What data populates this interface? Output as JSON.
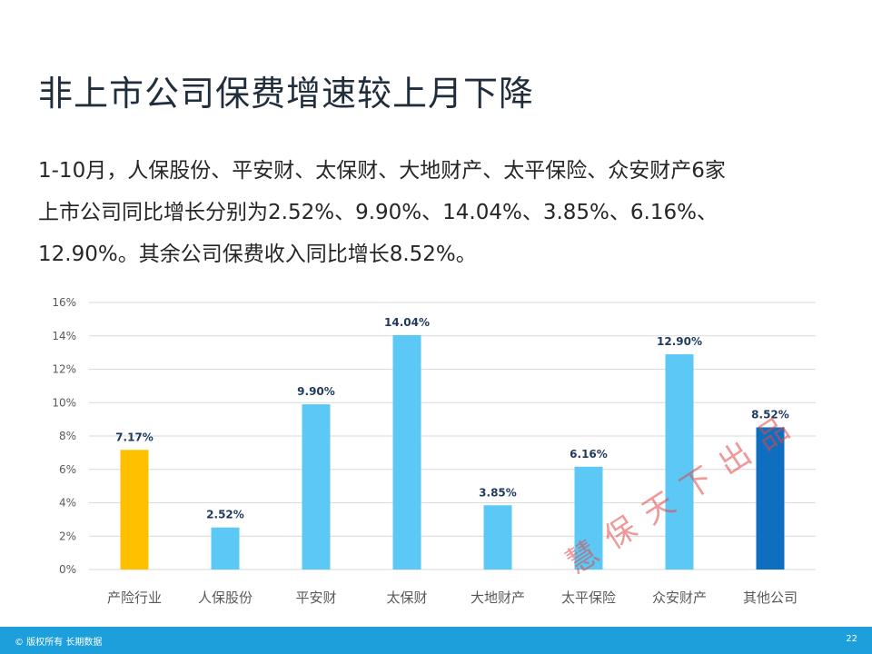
{
  "slide": {
    "title": "非上市公司保费增速较上月下降",
    "paragraph_lines": [
      "1-10月，人保股份、平安财、太保财、大地财产、太平保险、众安财产6家",
      "上市公司同比增长分别为2.52%、9.90%、14.04%、3.85%、6.16%、",
      "12.90%。其余公司保费收入同比增长8.52%。"
    ],
    "stamp_text": "慧保天下出品",
    "footer_text": "© 版权所有 长期数据",
    "page_number": "22"
  },
  "chart_data": {
    "type": "bar",
    "categories": [
      "产险行业",
      "人保股份",
      "平安财",
      "太保财",
      "大地财产",
      "太平保险",
      "众安财产",
      "其他公司"
    ],
    "values": [
      7.17,
      2.52,
      9.9,
      14.04,
      3.85,
      6.16,
      12.9,
      8.52
    ],
    "value_labels": [
      "7.17%",
      "2.52%",
      "9.90%",
      "14.04%",
      "3.85%",
      "6.16%",
      "12.90%",
      "8.52%"
    ],
    "y_ticks": [
      "0%",
      "2%",
      "4%",
      "6%",
      "8%",
      "10%",
      "12%",
      "14%",
      "16%"
    ],
    "ylim": [
      0,
      16
    ],
    "grid": true,
    "colors": [
      "#ffc000",
      "#5bc8f5",
      "#5bc8f5",
      "#5bc8f5",
      "#5bc8f5",
      "#5bc8f5",
      "#5bc8f5",
      "#0e6fc1"
    ],
    "label_color": "#1f3a5f",
    "tick_color": "#595959",
    "grid_color": "#d9d9d9"
  }
}
